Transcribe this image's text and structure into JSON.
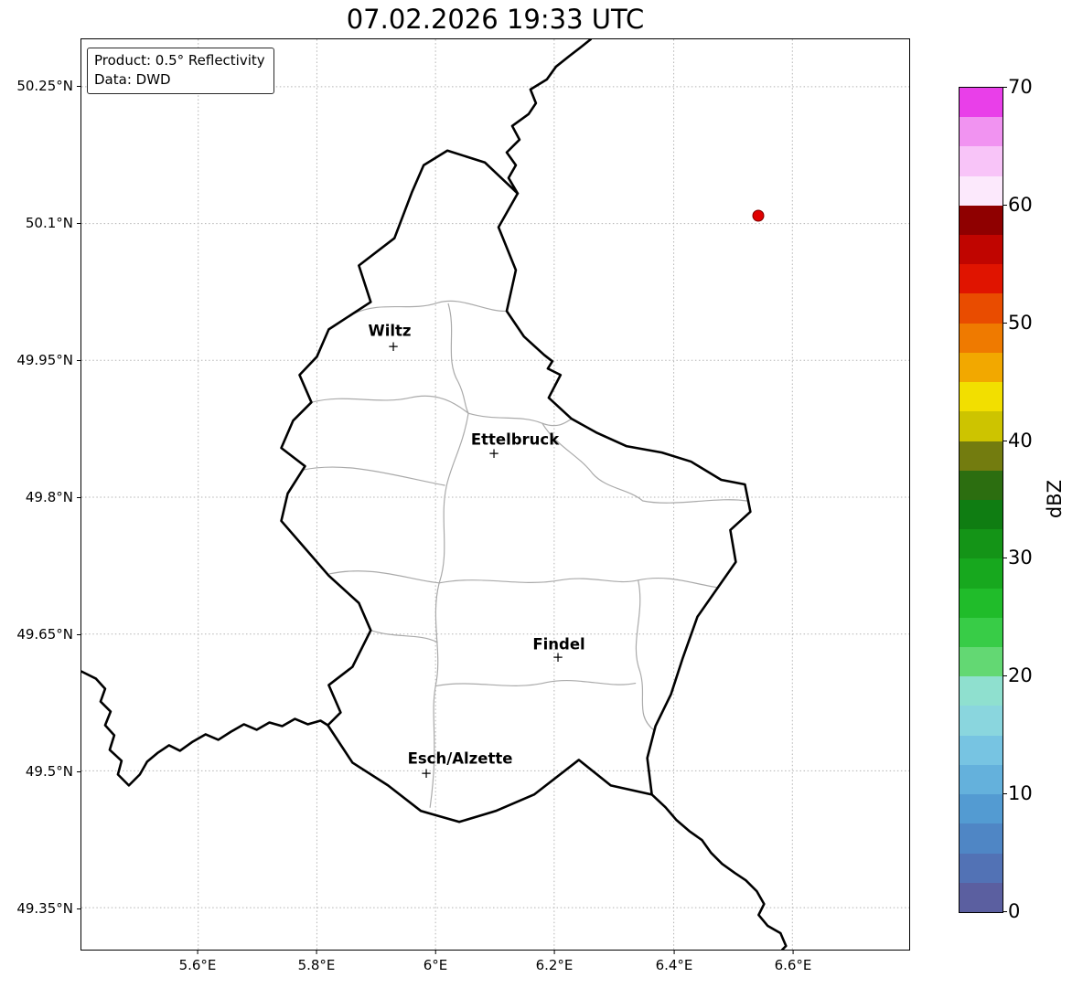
{
  "title": "07.02.2026 19:33 UTC",
  "info_box": {
    "line1": "Product: 0.5° Reflectivity",
    "line2": "Data: DWD"
  },
  "axes": {
    "x_ticks": [
      "5.6°E",
      "5.8°E",
      "6°E",
      "6.2°E",
      "6.4°E",
      "6.6°E"
    ],
    "y_ticks": [
      "50.25°N",
      "50.1°N",
      "49.95°N",
      "49.8°N",
      "49.65°N",
      "49.5°N",
      "49.35°N"
    ]
  },
  "map": {
    "cities": [
      {
        "name": "Wiltz"
      },
      {
        "name": "Ettelbruck"
      },
      {
        "name": "Findel"
      },
      {
        "name": "Esch/Alzette"
      }
    ],
    "city_marker_symbol": "+",
    "echo_point_color": "#e00000",
    "border_colors": {
      "national": "#000000",
      "district": "#aaaaaa",
      "grid": "#b3b3b3"
    }
  },
  "colorbar": {
    "label": "dBZ",
    "ticks": [
      "70",
      "60",
      "50",
      "40",
      "30",
      "20",
      "10",
      "0"
    ],
    "colors_bottom_to_top": [
      "#5b5fa0",
      "#5272b5",
      "#4f86c5",
      "#539bd2",
      "#64b1dc",
      "#77c4e2",
      "#8ad6de",
      "#8fe0cf",
      "#63d873",
      "#38cc47",
      "#20bc2a",
      "#17a81e",
      "#149417",
      "#0f7d12",
      "#2c6e10",
      "#737c0f",
      "#cdc400",
      "#f2df00",
      "#f2a800",
      "#ef7a00",
      "#e94c00",
      "#e01400",
      "#c00500",
      "#8f0000",
      "#fce9fc",
      "#f8c4f8",
      "#f193f1",
      "#e93fe9"
    ]
  }
}
